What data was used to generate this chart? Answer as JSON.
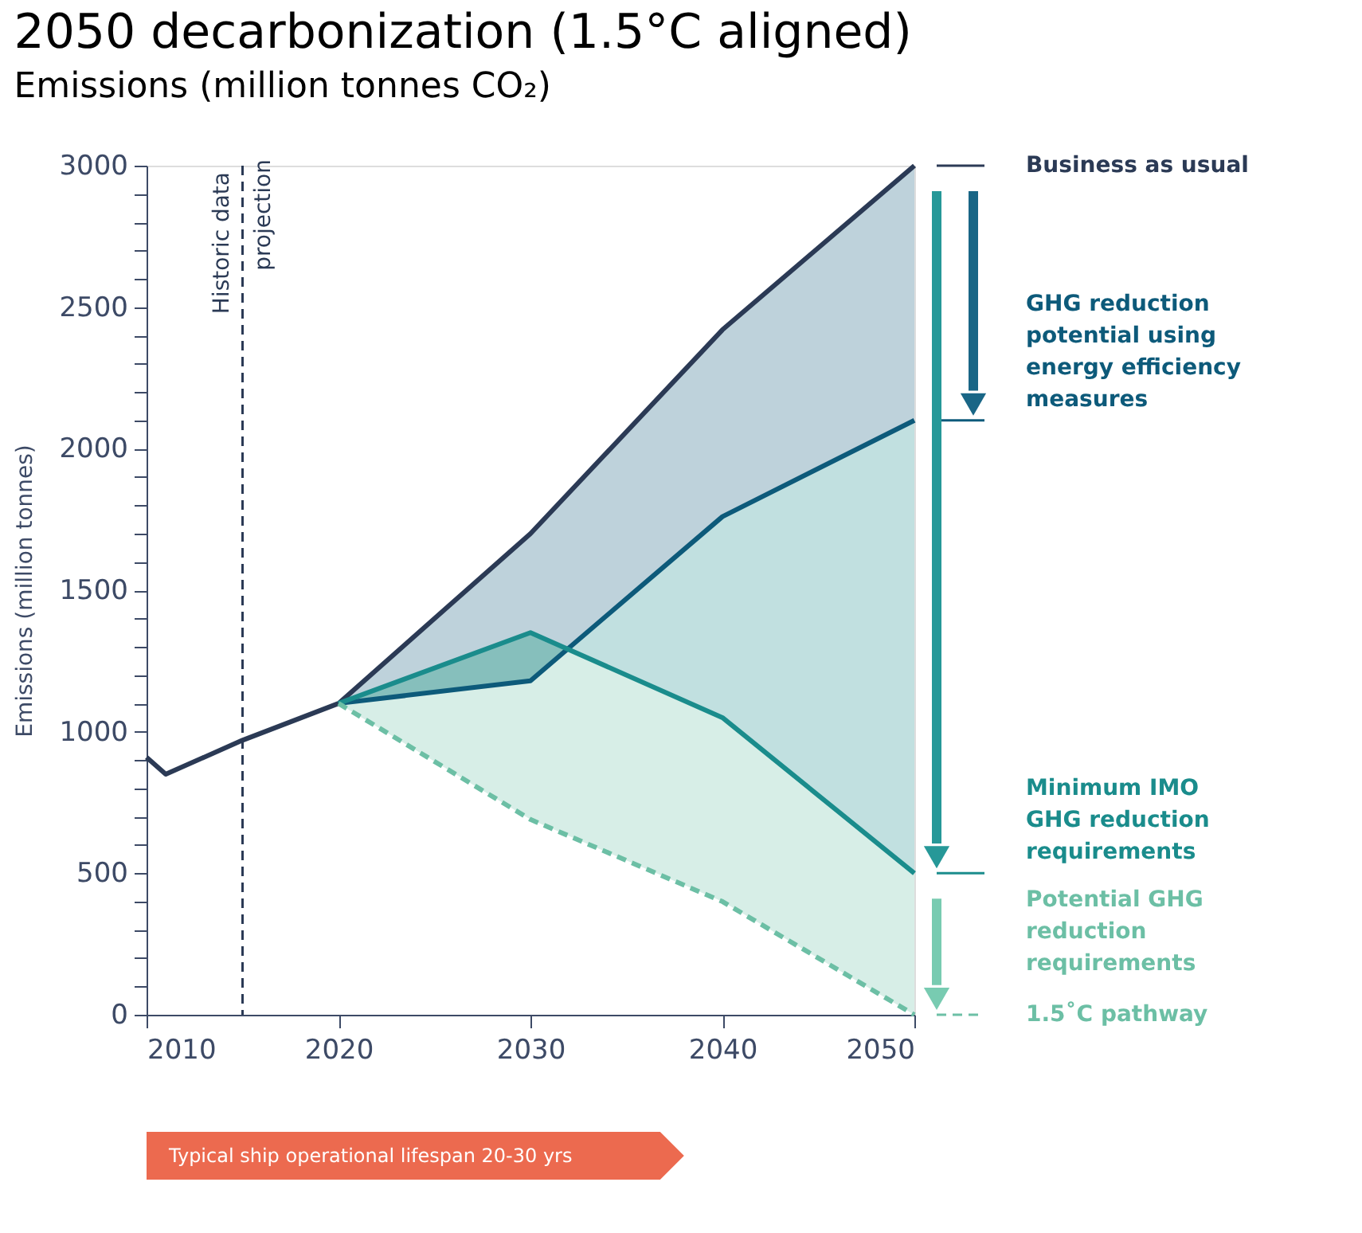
{
  "chart_data": {
    "type": "line",
    "title": "2050 decarbonization (1.5°C aligned)",
    "subtitle": "Emissions (million tonnes CO₂)",
    "ylabel": "Emissions (million tonnes)",
    "xlim": [
      2010,
      2050
    ],
    "xticks": [
      2010,
      2020,
      2030,
      2040,
      2050
    ],
    "ylim": [
      0,
      3000
    ],
    "yticks": [
      0,
      {
        "value": 100,
        "label": null
      },
      {
        "value": 200,
        "label": null
      },
      {
        "value": 300,
        "label": null
      },
      {
        "value": 400,
        "label": null
      },
      500,
      {
        "value": 600,
        "label": null
      },
      {
        "value": 700,
        "label": null
      },
      {
        "value": 800,
        "label": null
      },
      {
        "value": 900,
        "label": null
      },
      1000,
      {
        "value": 1100,
        "label": null
      },
      {
        "value": 1200,
        "label": null
      },
      {
        "value": 1300,
        "label": null
      },
      {
        "value": 1400,
        "label": null
      },
      1500,
      {
        "value": 1600,
        "label": null
      },
      {
        "value": 1700,
        "label": null
      },
      {
        "value": 1800,
        "label": null
      },
      {
        "value": 1900,
        "label": null
      },
      2000,
      {
        "value": 2100,
        "label": null
      },
      {
        "value": 2200,
        "label": null
      },
      {
        "value": 2300,
        "label": null
      },
      {
        "value": 2400,
        "label": null
      },
      2500,
      {
        "value": 2600,
        "label": null
      },
      {
        "value": 2700,
        "label": null
      },
      {
        "value": 2800,
        "label": null
      },
      {
        "value": 2900,
        "label": null
      },
      3000
    ],
    "grid": false,
    "legend": "right",
    "series": [
      {
        "name": "Business as usual",
        "color": "#2b3a55",
        "x": [
          2010,
          2011,
          2015,
          2020,
          2030,
          2040,
          2050
        ],
        "values": [
          910,
          850,
          970,
          1100,
          1700,
          2420,
          3000
        ],
        "line_style": "solid"
      },
      {
        "name": "GHG reduction potential using energy efficiency measures",
        "color": "#0d5a7a",
        "x": [
          2020,
          2030,
          2040,
          2050
        ],
        "values": [
          1100,
          1180,
          1760,
          2100
        ],
        "lower": [
          1100,
          1180,
          1760,
          2100
        ],
        "upper": [
          1100,
          1700,
          2420,
          3000
        ],
        "line_style": "solid"
      },
      {
        "name": "Minimum IMO GHG reduction requirements",
        "color": "#1a8c8c",
        "x": [
          2020,
          2030,
          2040,
          2050
        ],
        "values": [
          1100,
          1350,
          1050,
          500
        ],
        "lower": [
          1100,
          1350,
          1050,
          500
        ],
        "upper": [
          1100,
          1180,
          1760,
          2100
        ],
        "line_style": "solid"
      },
      {
        "name": "1.5˚C pathway",
        "color": "#6cbfa5",
        "x": [
          2020,
          2030,
          2040,
          2050
        ],
        "values": [
          1100,
          690,
          400,
          0
        ],
        "lower": [
          1100,
          690,
          400,
          0
        ],
        "upper": [
          1100,
          1350,
          1050,
          500
        ],
        "line_style": "dashed"
      }
    ],
    "ref_lines": [
      {
        "axis": "x",
        "value": 2015,
        "label": "Historic data",
        "color": "#2b3a55",
        "line_style": "dashed"
      }
    ],
    "annotations": [
      {
        "text": "projection",
        "x": 2015,
        "y": 3000
      },
      "Potential GHG reduction requirements",
      "Typical ship operational lifespan 20-30 yrs"
    ]
  }
}
